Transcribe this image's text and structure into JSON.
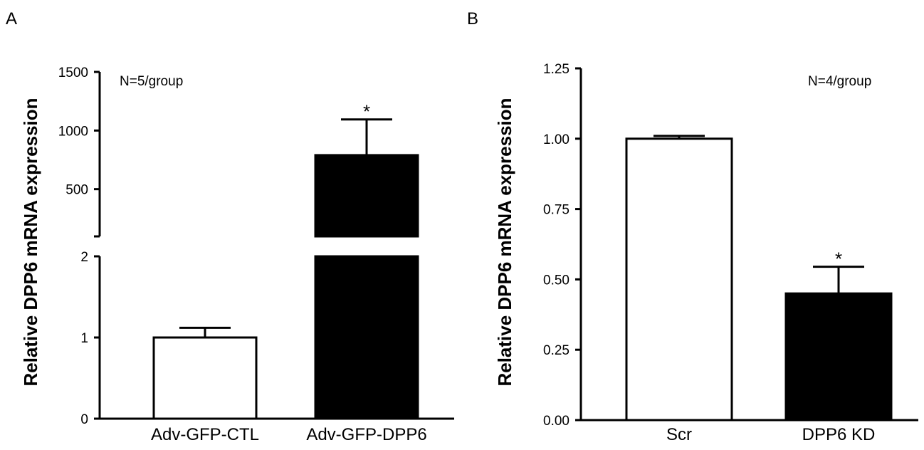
{
  "chart_data": [
    {
      "panel_label": "A",
      "type": "bar",
      "ylabel": "Relative DPP6 mRNA expression",
      "annotation": "N=5/group",
      "categories": [
        "Adv-GFP-CTL",
        "Adv-GFP-DPP6"
      ],
      "values": [
        1.0,
        790
      ],
      "errors": [
        0.12,
        305
      ],
      "bar_colors": [
        "#ffffff",
        "#000000"
      ],
      "significance": [
        "",
        "*"
      ],
      "broken_axis": true,
      "ylim_lower": [
        0,
        2
      ],
      "ylim_upper": [
        0,
        1500
      ],
      "yticks_lower": [
        "0",
        "1",
        "2"
      ],
      "yticks_upper": [
        "500",
        "1000",
        "1500"
      ],
      "grid": false
    },
    {
      "panel_label": "B",
      "type": "bar",
      "ylabel": "Relative DPP6 mRNA expression",
      "annotation": "N=4/group",
      "categories": [
        "Scr",
        "DPP6 KD"
      ],
      "values": [
        1.0,
        0.45
      ],
      "errors": [
        0.01,
        0.095
      ],
      "bar_colors": [
        "#ffffff",
        "#000000"
      ],
      "significance": [
        "",
        "*"
      ],
      "broken_axis": false,
      "ylim": [
        0,
        1.25
      ],
      "yticks": [
        "0.00",
        "0.25",
        "0.50",
        "0.75",
        "1.00",
        "1.25"
      ],
      "grid": false
    }
  ]
}
